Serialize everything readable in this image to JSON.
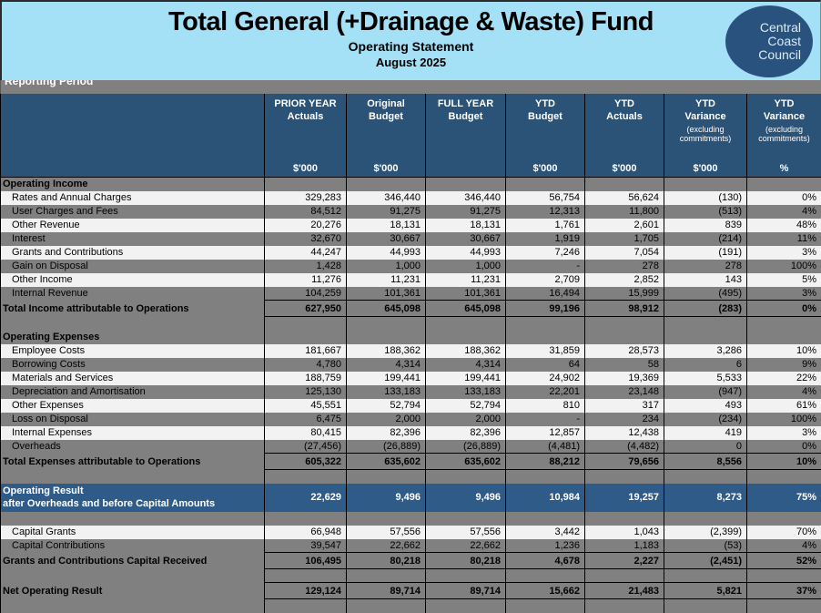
{
  "colors": {
    "masthead_bg": "#A5E1F6",
    "logo_bg": "#2A527F",
    "table_header_bg": "#2B5378",
    "result_row_bg": "#2F5B88",
    "row_gray": "#808080",
    "row_light": "#F2F2F2"
  },
  "masthead": {
    "title": "Total General (+Drainage & Waste) Fund",
    "subtitle1": "Operating Statement",
    "subtitle2": "August 2025",
    "logo_lines": [
      "Central",
      "Coast",
      "Council"
    ]
  },
  "reporting_period_label": "Reporting Period",
  "table": {
    "columns": [
      {
        "line1": "PRIOR YEAR",
        "line2": "Actuals",
        "note": "",
        "unit": "$'000"
      },
      {
        "line1": "Original",
        "line2": "Budget",
        "note": "",
        "unit": "$'000"
      },
      {
        "line1": "FULL YEAR",
        "line2": "Budget",
        "note": "",
        "unit": ""
      },
      {
        "line1": "YTD",
        "line2": "Budget",
        "note": "",
        "unit": "$'000"
      },
      {
        "line1": "YTD",
        "line2": "Actuals",
        "note": "",
        "unit": "$'000"
      },
      {
        "line1": "YTD",
        "line2": "Variance",
        "note": "(excluding commitments)",
        "unit": "$'000"
      },
      {
        "line1": "YTD",
        "line2": "Variance",
        "note": "(excluding commitments)",
        "unit": "%"
      }
    ],
    "rows": [
      {
        "type": "section",
        "label": "Operating Income",
        "values": [
          "",
          "",
          "",
          "",
          "",
          "",
          ""
        ]
      },
      {
        "type": "data",
        "shade": "light",
        "label": "Rates and Annual Charges",
        "values": [
          "329,283",
          "346,440",
          "346,440",
          "56,754",
          "56,624",
          "(130)",
          "0%"
        ]
      },
      {
        "type": "data",
        "shade": "dark",
        "label": "User Charges and Fees",
        "values": [
          "84,512",
          "91,275",
          "91,275",
          "12,313",
          "11,800",
          "(513)",
          "4%"
        ]
      },
      {
        "type": "data",
        "shade": "light",
        "label": "Other Revenue",
        "values": [
          "20,276",
          "18,131",
          "18,131",
          "1,761",
          "2,601",
          "839",
          "48%"
        ]
      },
      {
        "type": "data",
        "shade": "dark",
        "label": "Interest",
        "values": [
          "32,670",
          "30,667",
          "30,667",
          "1,919",
          "1,705",
          "(214)",
          "11%"
        ]
      },
      {
        "type": "data",
        "shade": "light",
        "label": "Grants and Contributions",
        "values": [
          "44,247",
          "44,993",
          "44,993",
          "7,246",
          "7,054",
          "(191)",
          "3%"
        ]
      },
      {
        "type": "data",
        "shade": "dark",
        "label": "Gain on Disposal",
        "values": [
          "1,428",
          "1,000",
          "1,000",
          "-",
          "278",
          "278",
          "100%"
        ]
      },
      {
        "type": "data",
        "shade": "light",
        "label": "Other Income",
        "values": [
          "11,276",
          "11,231",
          "11,231",
          "2,709",
          "2,852",
          "143",
          "5%"
        ]
      },
      {
        "type": "data",
        "shade": "dark",
        "label": "Internal Revenue",
        "values": [
          "104,259",
          "101,361",
          "101,361",
          "16,494",
          "15,999",
          "(495)",
          "3%"
        ]
      },
      {
        "type": "total",
        "label": "Total Income attributable to Operations",
        "values": [
          "627,950",
          "645,098",
          "645,098",
          "99,196",
          "98,912",
          "(283)",
          "0%"
        ]
      },
      {
        "type": "spacer",
        "label": "",
        "values": [
          "",
          "",
          "",
          "",
          "",
          "",
          ""
        ]
      },
      {
        "type": "section",
        "label": "Operating Expenses",
        "values": [
          "",
          "",
          "",
          "",
          "",
          "",
          ""
        ]
      },
      {
        "type": "data",
        "shade": "light",
        "label": "Employee Costs",
        "values": [
          "181,667",
          "188,362",
          "188,362",
          "31,859",
          "28,573",
          "3,286",
          "10%"
        ]
      },
      {
        "type": "data",
        "shade": "dark",
        "label": "Borrowing Costs",
        "values": [
          "4,780",
          "4,314",
          "4,314",
          "64",
          "58",
          "6",
          "9%"
        ]
      },
      {
        "type": "data",
        "shade": "light",
        "label": "Materials and Services",
        "values": [
          "188,759",
          "199,441",
          "199,441",
          "24,902",
          "19,369",
          "5,533",
          "22%"
        ]
      },
      {
        "type": "data",
        "shade": "dark",
        "label": "Depreciation and Amortisation",
        "values": [
          "125,130",
          "133,183",
          "133,183",
          "22,201",
          "23,148",
          "(947)",
          "4%"
        ]
      },
      {
        "type": "data",
        "shade": "light",
        "label": "Other Expenses",
        "values": [
          "45,551",
          "52,794",
          "52,794",
          "810",
          "317",
          "493",
          "61%"
        ]
      },
      {
        "type": "data",
        "shade": "dark",
        "label": "Loss on Disposal",
        "values": [
          "6,475",
          "2,000",
          "2,000",
          "-",
          "234",
          "(234)",
          "100%"
        ]
      },
      {
        "type": "data",
        "shade": "light",
        "label": "Internal Expenses",
        "values": [
          "80,415",
          "82,396",
          "82,396",
          "12,857",
          "12,438",
          "419",
          "3%"
        ]
      },
      {
        "type": "data",
        "shade": "dark",
        "label": "Overheads",
        "values": [
          "(27,456)",
          "(26,889)",
          "(26,889)",
          "(4,481)",
          "(4,482)",
          "0",
          "0%"
        ]
      },
      {
        "type": "total",
        "label": "Total Expenses attributable to Operations",
        "values": [
          "605,322",
          "635,602",
          "635,602",
          "88,212",
          "79,656",
          "8,556",
          "10%"
        ]
      },
      {
        "type": "spacer",
        "label": "",
        "values": [
          "",
          "",
          "",
          "",
          "",
          "",
          ""
        ]
      },
      {
        "type": "result",
        "label": "Operating Result",
        "label2": "after Overheads and before Capital Amounts",
        "values": [
          "22,629",
          "9,496",
          "9,496",
          "10,984",
          "19,257",
          "8,273",
          "75%"
        ]
      },
      {
        "type": "spacer",
        "label": "",
        "values": [
          "",
          "",
          "",
          "",
          "",
          "",
          ""
        ]
      },
      {
        "type": "data",
        "shade": "light",
        "label": "Capital Grants",
        "values": [
          "66,948",
          "57,556",
          "57,556",
          "3,442",
          "1,043",
          "(2,399)",
          "70%"
        ]
      },
      {
        "type": "data",
        "shade": "dark",
        "label": "Capital Contributions",
        "values": [
          "39,547",
          "22,662",
          "22,662",
          "1,236",
          "1,183",
          "(53)",
          "4%"
        ]
      },
      {
        "type": "total",
        "label": "Grants and Contributions Capital Received",
        "values": [
          "106,495",
          "80,218",
          "80,218",
          "4,678",
          "2,227",
          "(2,451)",
          "52%"
        ]
      },
      {
        "type": "spacer",
        "label": "",
        "values": [
          "",
          "",
          "",
          "",
          "",
          "",
          ""
        ]
      },
      {
        "type": "total",
        "label": "Net Operating Result",
        "values": [
          "129,124",
          "89,714",
          "89,714",
          "15,662",
          "21,483",
          "5,821",
          "37%"
        ]
      },
      {
        "type": "spacer",
        "label": "",
        "values": [
          "",
          "",
          "",
          "",
          "",
          "",
          ""
        ]
      }
    ]
  }
}
